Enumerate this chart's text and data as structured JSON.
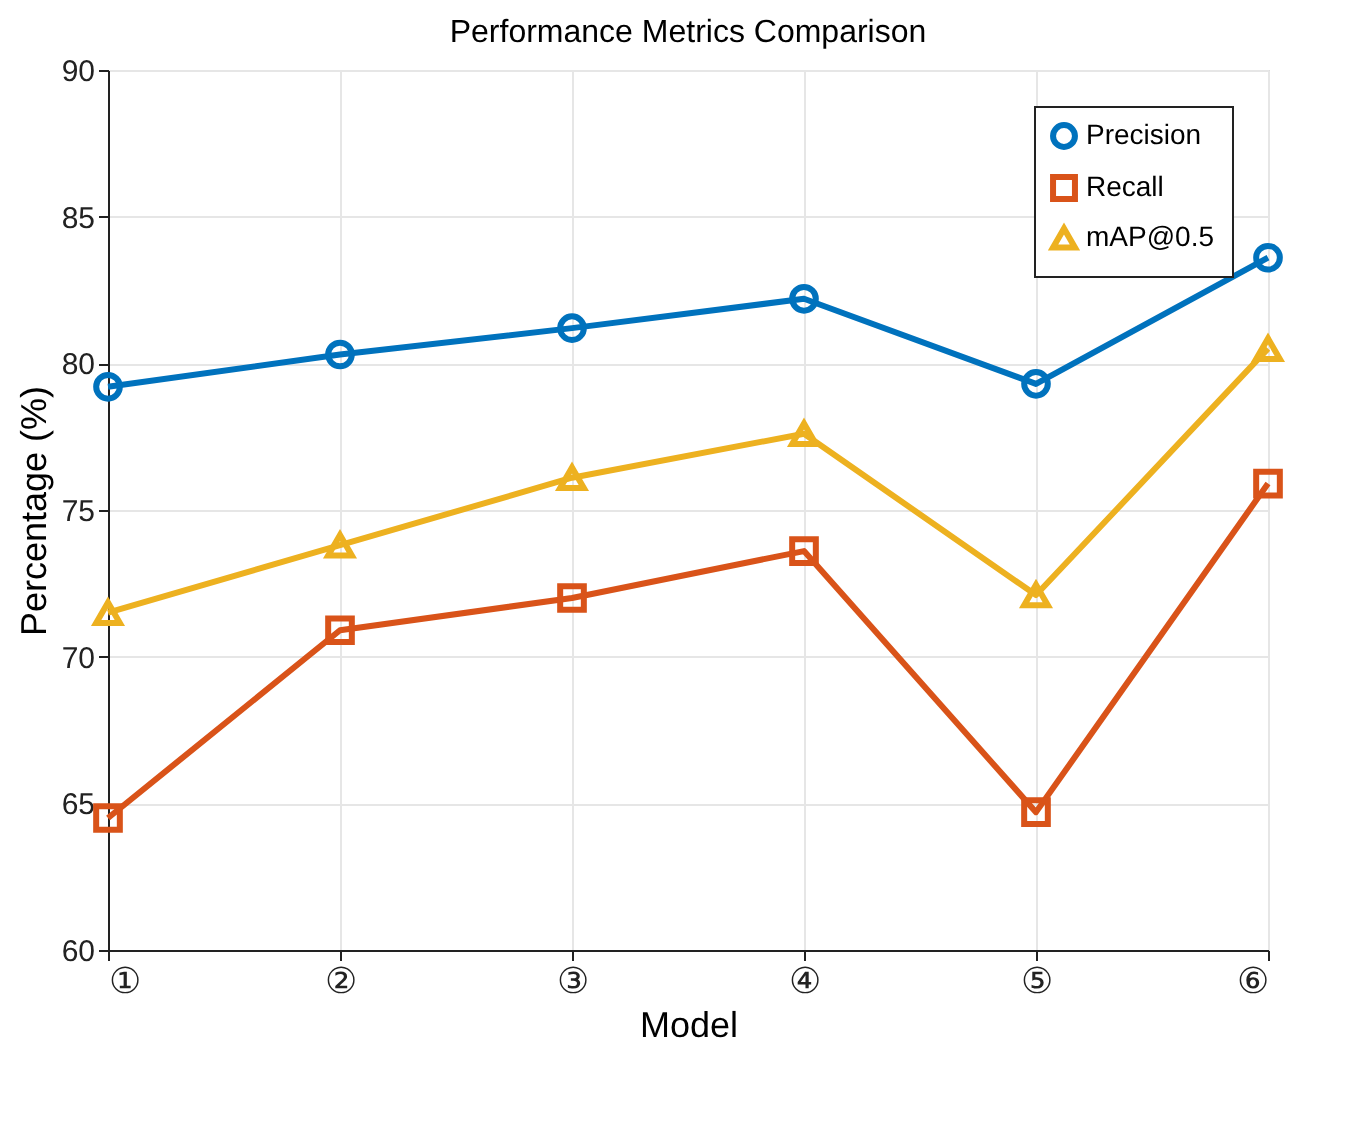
{
  "chart_data": {
    "type": "line",
    "title": "Performance Metrics Comparison",
    "xlabel": "Model",
    "ylabel": "Percentage (%)",
    "categories": [
      "①",
      "②",
      "③",
      "④",
      "⑤",
      "⑥"
    ],
    "series": [
      {
        "name": "Precision",
        "color": "#0072bd",
        "marker": "circle",
        "values": [
          79.2,
          80.3,
          81.2,
          82.2,
          79.3,
          83.6
        ]
      },
      {
        "name": "Recall",
        "color": "#d95319",
        "marker": "square",
        "values": [
          64.5,
          70.9,
          72.0,
          73.6,
          64.7,
          75.9
        ]
      },
      {
        "name": "mAP@0.5",
        "color": "#edb120",
        "marker": "triangle",
        "values": [
          71.5,
          73.8,
          76.1,
          77.6,
          72.1,
          80.5
        ]
      }
    ],
    "ylim": [
      60,
      90
    ],
    "yticks": [
      60,
      65,
      70,
      75,
      80,
      85,
      90
    ],
    "grid": true,
    "legend": "top right",
    "line_style": "solid"
  }
}
